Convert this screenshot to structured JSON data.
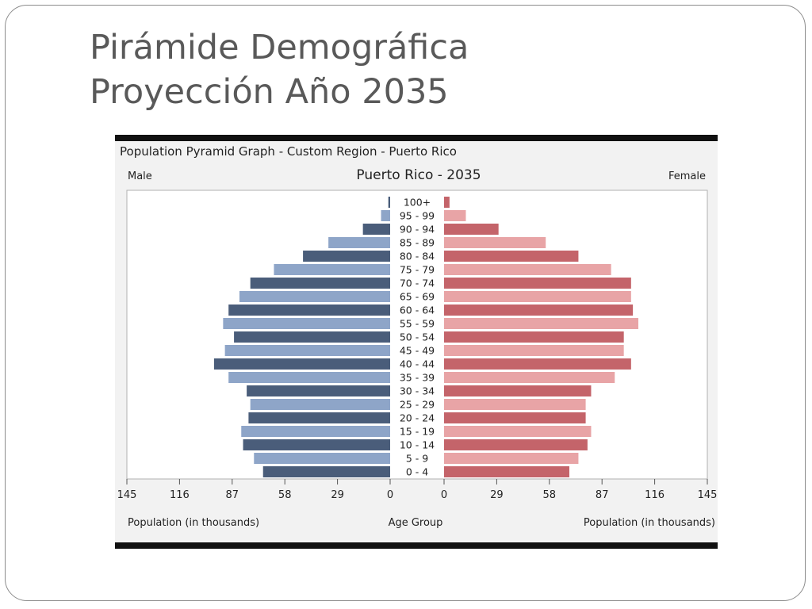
{
  "slide": {
    "title_line1": "Pirámide Demográfica",
    "title_line2": "Proyección Año 2035"
  },
  "colors": {
    "male_dark": "#4a5d7a",
    "male_light": "#8ea5c8",
    "female_dark": "#c4646a",
    "female_light": "#e8a4a6",
    "title": "#595959"
  },
  "chart_data": {
    "type": "bar",
    "orientation": "horizontal-pyramid",
    "heading": "Population Pyramid Graph - Custom Region - Puerto Rico",
    "title": "Puerto Rico - 2035",
    "left_label": "Male",
    "right_label": "Female",
    "xlabel_left": "Population (in thousands)",
    "xlabel_center": "Age Group",
    "xlabel_right": "Population (in thousands)",
    "xlim": [
      0,
      145
    ],
    "ticks": [
      145,
      116,
      87,
      58,
      29,
      0
    ],
    "ticks_right": [
      0,
      29,
      58,
      87,
      116,
      145
    ],
    "grid": false,
    "categories": [
      "100+",
      "95 - 99",
      "90 - 94",
      "85 - 89",
      "80 - 84",
      "75 - 79",
      "70 - 74",
      "65 - 69",
      "60 - 64",
      "55 - 59",
      "50 - 54",
      "45 - 49",
      "40 - 44",
      "35 - 39",
      "30 - 34",
      "25 - 29",
      "20 - 24",
      "15 - 19",
      "10 - 14",
      "5 - 9",
      "0 - 4"
    ],
    "series": [
      {
        "name": "Male",
        "values": [
          1,
          5,
          15,
          34,
          48,
          64,
          77,
          83,
          89,
          92,
          86,
          91,
          97,
          89,
          79,
          77,
          78,
          82,
          81,
          75,
          70
        ]
      },
      {
        "name": "Female",
        "values": [
          3,
          12,
          30,
          56,
          74,
          92,
          103,
          103,
          104,
          107,
          99,
          99,
          103,
          94,
          81,
          78,
          78,
          81,
          79,
          74,
          69
        ]
      }
    ]
  }
}
